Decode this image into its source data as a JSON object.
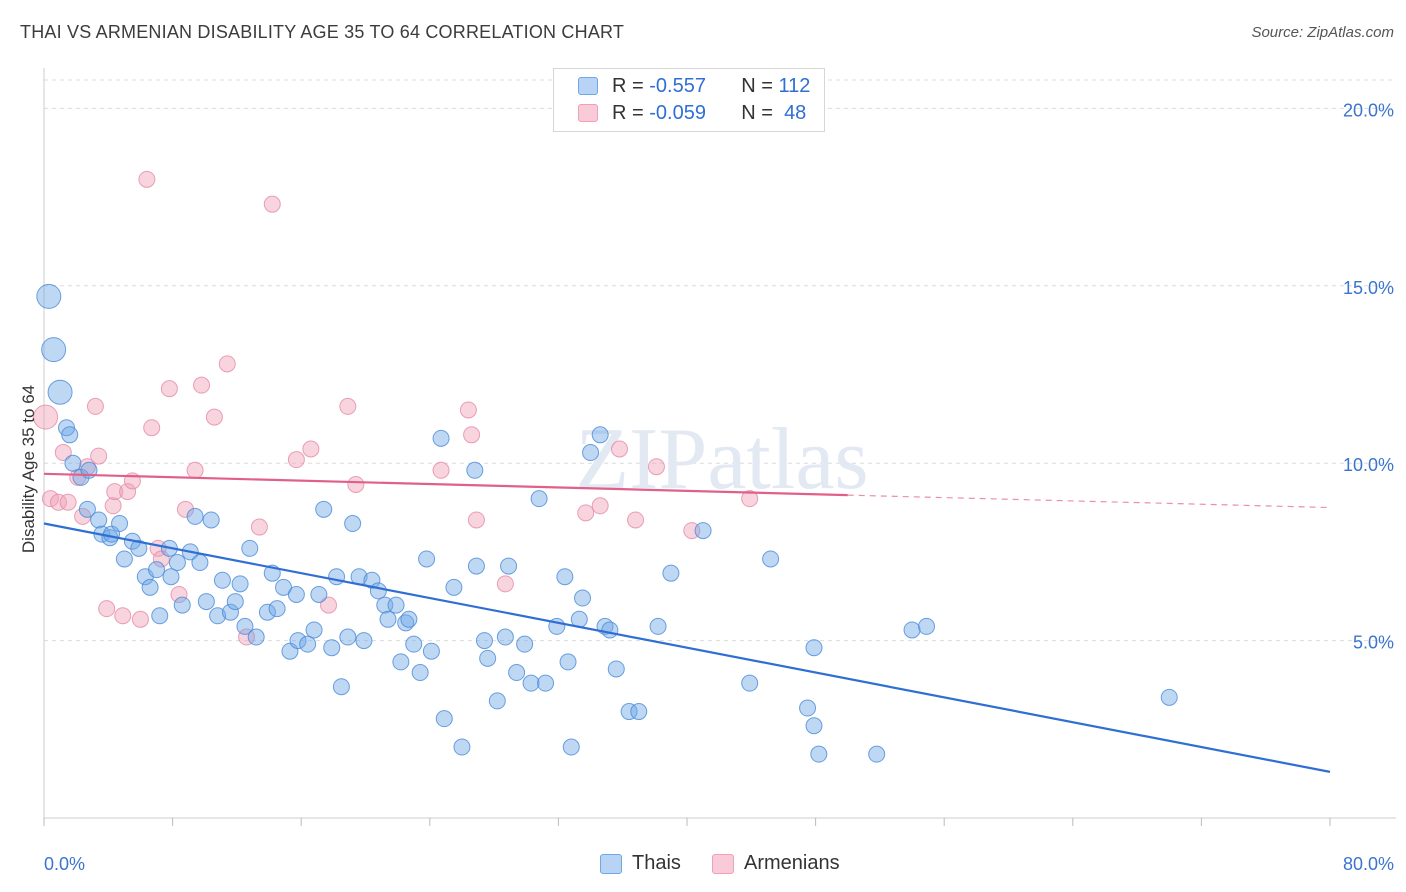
{
  "title": "THAI VS ARMENIAN DISABILITY AGE 35 TO 64 CORRELATION CHART",
  "source": "Source: ZipAtlas.com",
  "watermark": "ZIPatlas",
  "legend": {
    "rows": [
      {
        "r_label": "R =",
        "r_value": "-0.557",
        "n_label": "N =",
        "n_value": "112"
      },
      {
        "r_label": "R =",
        "r_value": "-0.059",
        "n_label": "N =",
        "n_value": "48"
      }
    ]
  },
  "bottom_legend": {
    "thais": "Thais",
    "armenians": "Armenians"
  },
  "colors": {
    "thais": "#6fa8e6",
    "thais_line": "#2f6fd4",
    "armenians": "#f0a0b8",
    "armenians_line": "#e0608a",
    "axis_text": "#3b74cf"
  },
  "chart_data": {
    "type": "scatter",
    "title": "THAI VS ARMENIAN DISABILITY AGE 35 TO 64 CORRELATION CHART",
    "xlabel": "",
    "ylabel": "Disability Age 35 to 64",
    "xlim": [
      0,
      80
    ],
    "ylim": [
      0,
      20.8
    ],
    "x_tick_labels": [
      "0.0%",
      "80.0%"
    ],
    "y_ticks": [
      5,
      10,
      15,
      20
    ],
    "y_tick_labels": [
      "5.0%",
      "10.0%",
      "15.0%",
      "20.0%"
    ],
    "grid": true,
    "legend_position": "top-center",
    "series": [
      {
        "name": "Thais",
        "trend": {
          "x": [
            0,
            80
          ],
          "y": [
            8.3,
            1.3
          ]
        },
        "points": [
          [
            0.3,
            14.7,
            1
          ],
          [
            0.6,
            13.2,
            1
          ],
          [
            1.0,
            12.0,
            1
          ],
          [
            1.4,
            11.0,
            0
          ],
          [
            1.6,
            10.8,
            0
          ],
          [
            1.8,
            10.0,
            0
          ],
          [
            2.3,
            9.6,
            0
          ],
          [
            2.8,
            9.8,
            0
          ],
          [
            2.7,
            8.7,
            0
          ],
          [
            3.4,
            8.4,
            0
          ],
          [
            3.6,
            8.0,
            0
          ],
          [
            4.1,
            7.9,
            0
          ],
          [
            4.2,
            8.0,
            0
          ],
          [
            4.7,
            8.3,
            0
          ],
          [
            5.0,
            7.3,
            0
          ],
          [
            5.5,
            7.8,
            0
          ],
          [
            5.9,
            7.6,
            0
          ],
          [
            6.3,
            6.8,
            0
          ],
          [
            6.6,
            6.5,
            0
          ],
          [
            7.0,
            7.0,
            0
          ],
          [
            7.2,
            5.7,
            0
          ],
          [
            7.8,
            7.6,
            0
          ],
          [
            7.9,
            6.8,
            0
          ],
          [
            8.3,
            7.2,
            0
          ],
          [
            8.6,
            6.0,
            0
          ],
          [
            9.1,
            7.5,
            0
          ],
          [
            9.4,
            8.5,
            0
          ],
          [
            9.7,
            7.2,
            0
          ],
          [
            10.1,
            6.1,
            0
          ],
          [
            10.4,
            8.4,
            0
          ],
          [
            10.8,
            5.7,
            0
          ],
          [
            11.1,
            6.7,
            0
          ],
          [
            11.6,
            5.8,
            0
          ],
          [
            11.9,
            6.1,
            0
          ],
          [
            12.2,
            6.6,
            0
          ],
          [
            12.5,
            5.4,
            0
          ],
          [
            12.8,
            7.6,
            0
          ],
          [
            13.2,
            5.1,
            0
          ],
          [
            13.9,
            5.8,
            0
          ],
          [
            14.2,
            6.9,
            0
          ],
          [
            14.5,
            5.9,
            0
          ],
          [
            14.9,
            6.5,
            0
          ],
          [
            15.3,
            4.7,
            0
          ],
          [
            15.7,
            6.3,
            0
          ],
          [
            15.8,
            5.0,
            0
          ],
          [
            16.4,
            4.9,
            0
          ],
          [
            16.8,
            5.3,
            0
          ],
          [
            17.1,
            6.3,
            0
          ],
          [
            17.4,
            8.7,
            0
          ],
          [
            17.9,
            4.8,
            0
          ],
          [
            18.2,
            6.8,
            0
          ],
          [
            18.5,
            3.7,
            0
          ],
          [
            18.9,
            5.1,
            0
          ],
          [
            19.2,
            8.3,
            0
          ],
          [
            19.6,
            6.8,
            0
          ],
          [
            19.9,
            5.0,
            0
          ],
          [
            20.4,
            6.7,
            0
          ],
          [
            20.8,
            6.4,
            0
          ],
          [
            21.2,
            6.0,
            0
          ],
          [
            21.4,
            5.6,
            0
          ],
          [
            21.9,
            6.0,
            0
          ],
          [
            22.2,
            4.4,
            0
          ],
          [
            22.5,
            5.5,
            0
          ],
          [
            22.7,
            5.6,
            0
          ],
          [
            23.0,
            4.9,
            0
          ],
          [
            23.4,
            4.1,
            0
          ],
          [
            23.8,
            7.3,
            0
          ],
          [
            24.1,
            4.7,
            0
          ],
          [
            24.7,
            10.7,
            0
          ],
          [
            24.9,
            2.8,
            0
          ],
          [
            25.5,
            6.5,
            0
          ],
          [
            26.0,
            2.0,
            0
          ],
          [
            26.8,
            9.8,
            0
          ],
          [
            26.9,
            7.1,
            0
          ],
          [
            27.4,
            5.0,
            0
          ],
          [
            27.6,
            4.5,
            0
          ],
          [
            28.2,
            3.3,
            0
          ],
          [
            28.7,
            5.1,
            0
          ],
          [
            28.9,
            7.1,
            0
          ],
          [
            29.4,
            4.1,
            0
          ],
          [
            29.9,
            4.9,
            0
          ],
          [
            30.3,
            3.8,
            0
          ],
          [
            30.8,
            9.0,
            0
          ],
          [
            31.2,
            3.8,
            0
          ],
          [
            31.9,
            5.4,
            0
          ],
          [
            32.4,
            6.8,
            0
          ],
          [
            32.6,
            4.4,
            0
          ],
          [
            32.8,
            2.0,
            0
          ],
          [
            33.3,
            5.6,
            0
          ],
          [
            33.5,
            6.2,
            0
          ],
          [
            34.0,
            10.3,
            0
          ],
          [
            34.6,
            10.8,
            0
          ],
          [
            34.9,
            5.4,
            0
          ],
          [
            35.2,
            5.3,
            0
          ],
          [
            35.6,
            4.2,
            0
          ],
          [
            36.4,
            3.0,
            0
          ],
          [
            37.0,
            3.0,
            0
          ],
          [
            38.2,
            5.4,
            0
          ],
          [
            39.0,
            6.9,
            0
          ],
          [
            41.0,
            8.1,
            0
          ],
          [
            43.9,
            3.8,
            0
          ],
          [
            45.2,
            7.3,
            0
          ],
          [
            47.5,
            3.1,
            0
          ],
          [
            47.9,
            2.6,
            0
          ],
          [
            47.9,
            4.8,
            0
          ],
          [
            48.2,
            1.8,
            0
          ],
          [
            51.8,
            1.8,
            0
          ],
          [
            54.0,
            5.3,
            0
          ],
          [
            54.9,
            5.4,
            0
          ],
          [
            70.0,
            3.4,
            0
          ]
        ]
      },
      {
        "name": "Armenians",
        "trend": {
          "x": [
            0,
            50
          ],
          "y": [
            9.7,
            9.1
          ]
        },
        "trend_extension": {
          "x": [
            50,
            80
          ],
          "y": [
            9.1,
            8.75
          ]
        },
        "points": [
          [
            0.1,
            11.3,
            1
          ],
          [
            0.4,
            9.0,
            0
          ],
          [
            0.9,
            8.9,
            0
          ],
          [
            1.2,
            10.3,
            0
          ],
          [
            1.5,
            8.9,
            0
          ],
          [
            2.1,
            9.6,
            0
          ],
          [
            2.4,
            8.5,
            0
          ],
          [
            2.7,
            9.9,
            0
          ],
          [
            3.2,
            11.6,
            0
          ],
          [
            3.4,
            10.2,
            0
          ],
          [
            3.9,
            5.9,
            0
          ],
          [
            4.3,
            8.8,
            0
          ],
          [
            4.4,
            9.2,
            0
          ],
          [
            4.9,
            5.7,
            0
          ],
          [
            5.2,
            9.2,
            0
          ],
          [
            5.5,
            9.5,
            0
          ],
          [
            6.0,
            5.6,
            0
          ],
          [
            6.4,
            18.0,
            0
          ],
          [
            6.7,
            11.0,
            0
          ],
          [
            7.1,
            7.6,
            0
          ],
          [
            7.3,
            7.3,
            0
          ],
          [
            7.8,
            12.1,
            0
          ],
          [
            8.4,
            6.3,
            0
          ],
          [
            8.8,
            8.7,
            0
          ],
          [
            9.4,
            9.8,
            0
          ],
          [
            9.8,
            12.2,
            0
          ],
          [
            10.6,
            11.3,
            0
          ],
          [
            11.4,
            12.8,
            0
          ],
          [
            12.6,
            5.1,
            0
          ],
          [
            13.4,
            8.2,
            0
          ],
          [
            14.2,
            17.3,
            0
          ],
          [
            15.7,
            10.1,
            0
          ],
          [
            16.6,
            10.4,
            0
          ],
          [
            17.7,
            6.0,
            0
          ],
          [
            18.9,
            11.6,
            0
          ],
          [
            19.4,
            9.4,
            0
          ],
          [
            24.7,
            9.8,
            0
          ],
          [
            26.4,
            11.5,
            0
          ],
          [
            26.6,
            10.8,
            0
          ],
          [
            26.9,
            8.4,
            0
          ],
          [
            28.7,
            6.6,
            0
          ],
          [
            33.7,
            8.6,
            0
          ],
          [
            34.6,
            8.8,
            0
          ],
          [
            35.8,
            10.4,
            0
          ],
          [
            36.8,
            8.4,
            0
          ],
          [
            38.1,
            9.9,
            0
          ],
          [
            40.3,
            8.1,
            0
          ],
          [
            43.9,
            9.0,
            0
          ]
        ]
      }
    ]
  }
}
